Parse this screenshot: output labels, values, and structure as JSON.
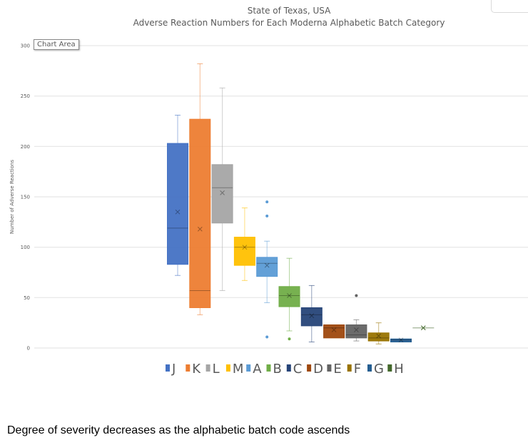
{
  "chart_data": {
    "type": "box",
    "title": "State of Texas, USA",
    "subtitle": "Adverse Reaction Numbers for Each Moderna Alphabetic Batch Category",
    "xlabel": "",
    "ylabel": "Number of Adverse Reactions",
    "ylim": [
      0,
      300
    ],
    "yticks": [
      "0",
      "50",
      "100",
      "150",
      "200",
      "250",
      "300"
    ],
    "grid": true,
    "legend_position": "bottom",
    "series": [
      {
        "name": "J",
        "color": "#4472C4",
        "min": 72,
        "q1": 83,
        "median": 119,
        "mean": 135,
        "q3": 203,
        "max": 231,
        "outliers": []
      },
      {
        "name": "K",
        "color": "#ED7D31",
        "min": 33,
        "q1": 40,
        "median": 57,
        "mean": 118,
        "q3": 227,
        "max": 282,
        "outliers": []
      },
      {
        "name": "L",
        "color": "#A5A5A5",
        "min": 57,
        "q1": 124,
        "median": 159,
        "mean": 154,
        "q3": 182,
        "max": 258,
        "outliers": []
      },
      {
        "name": "M",
        "color": "#FFC000",
        "min": 67,
        "q1": 82,
        "median": 100,
        "mean": 100,
        "q3": 110,
        "max": 139,
        "outliers": []
      },
      {
        "name": "A",
        "color": "#5B9BD5",
        "min": 45,
        "q1": 71,
        "median": 84,
        "mean": 82,
        "q3": 90,
        "max": 106,
        "outliers": [
          145,
          131,
          11
        ]
      },
      {
        "name": "B",
        "color": "#70AD47",
        "min": 17,
        "q1": 41,
        "median": 52,
        "mean": 52,
        "q3": 61,
        "max": 89,
        "outliers": [
          9
        ]
      },
      {
        "name": "C",
        "color": "#264478",
        "min": 6,
        "q1": 22,
        "median": 33,
        "mean": 32,
        "q3": 40,
        "max": 62,
        "outliers": []
      },
      {
        "name": "D",
        "color": "#9E480E",
        "min": 10,
        "q1": 10,
        "median": 20,
        "mean": 18,
        "q3": 23,
        "max": 23,
        "outliers": []
      },
      {
        "name": "E",
        "color": "#636363",
        "min": 7,
        "q1": 10,
        "median": 13,
        "mean": 18,
        "q3": 23,
        "max": 28,
        "outliers": [
          52
        ]
      },
      {
        "name": "F",
        "color": "#997300",
        "min": 4,
        "q1": 7,
        "median": 10,
        "mean": 12,
        "q3": 15,
        "max": 25,
        "outliers": []
      },
      {
        "name": "G",
        "color": "#255E91",
        "min": 6,
        "q1": 6,
        "median": 8,
        "mean": 8,
        "q3": 9,
        "max": 9,
        "outliers": []
      },
      {
        "name": "H",
        "color": "#43682B",
        "min": 20,
        "q1": 20,
        "median": 20,
        "mean": 20,
        "q3": 20,
        "max": 20,
        "outliers": []
      }
    ]
  },
  "tooltip": "Chart Area",
  "caption": "Degree of severity decreases as the alphabetic batch code ascends"
}
